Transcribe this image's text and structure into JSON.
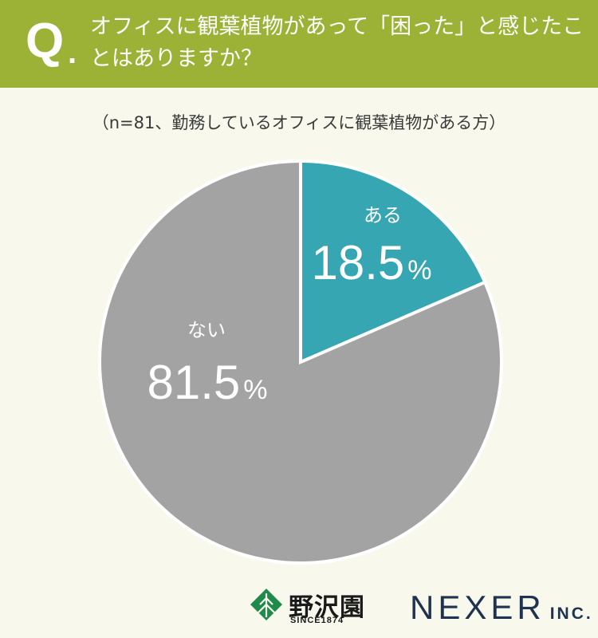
{
  "header": {
    "q_mark": "Q",
    "q_dot": ".",
    "question": "オフィスに観葉植物があって「困った」と感じたことはありますか？"
  },
  "subtitle": "（n=81、勤務しているオフィスに観葉植物がある方）",
  "chart_data": {
    "type": "pie",
    "title": "オフィスに観葉植物があって「困った」と感じたことはありますか？",
    "categories": [
      "ある",
      "ない"
    ],
    "values": [
      18.5,
      81.5
    ],
    "unit": "%",
    "colors": [
      "#35a6b2",
      "#a3a3a3"
    ],
    "start_angle": "12 o'clock, clockwise"
  },
  "logos": {
    "nozawa_name": "野沢園",
    "nozawa_since": "SINCE1874",
    "nexer_name": "NEXER",
    "nexer_suffix": "INC."
  }
}
